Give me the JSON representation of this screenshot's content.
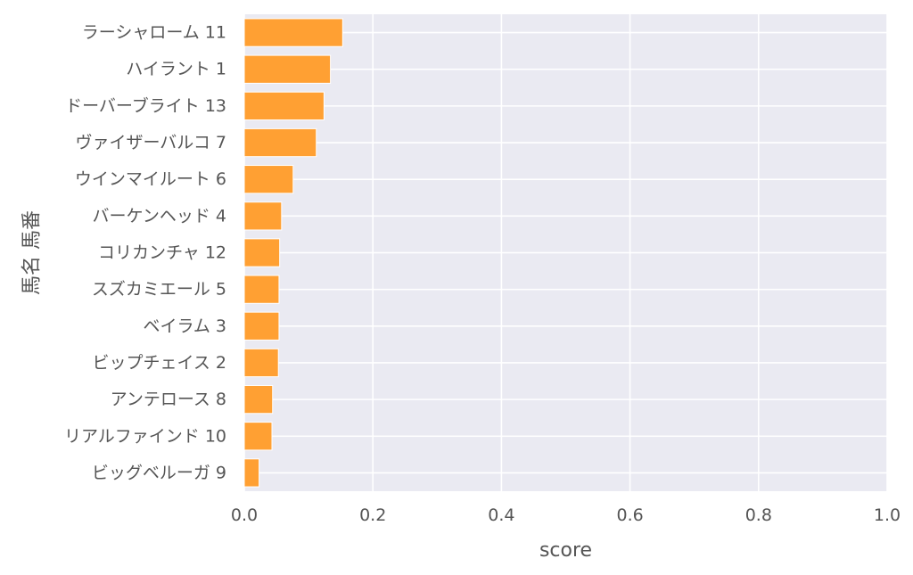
{
  "chart_data": {
    "type": "bar",
    "orientation": "horizontal",
    "categories": [
      "ラーシャローム 11",
      "ハイラント 1",
      "ドーバーブライト 13",
      "ヴァイザーバルコ 7",
      "ウインマイルート 6",
      "バーケンヘッド 4",
      "コリカンチャ 12",
      "スズカミエール 5",
      "ベイラム 3",
      "ビップチェイス 2",
      "アンテロース 8",
      "リアルファインド 10",
      "ビッグベルーガ 9"
    ],
    "values": [
      0.153,
      0.134,
      0.124,
      0.112,
      0.076,
      0.058,
      0.055,
      0.054,
      0.054,
      0.053,
      0.044,
      0.043,
      0.023
    ],
    "xlabel": "score",
    "ylabel": "馬名 馬番",
    "xlim": [
      0,
      1.0
    ],
    "xticks": [
      "0.0",
      "0.2",
      "0.4",
      "0.6",
      "0.8",
      "1.0"
    ],
    "xtick_values": [
      0,
      0.2,
      0.4,
      0.6,
      0.8,
      1.0
    ],
    "grid": true,
    "colors": {
      "bar": "#ffa033",
      "bar_edge": "#ffffff",
      "plot_bg": "#eaeaf2",
      "grid": "#ffffff",
      "text": "#555555"
    }
  }
}
